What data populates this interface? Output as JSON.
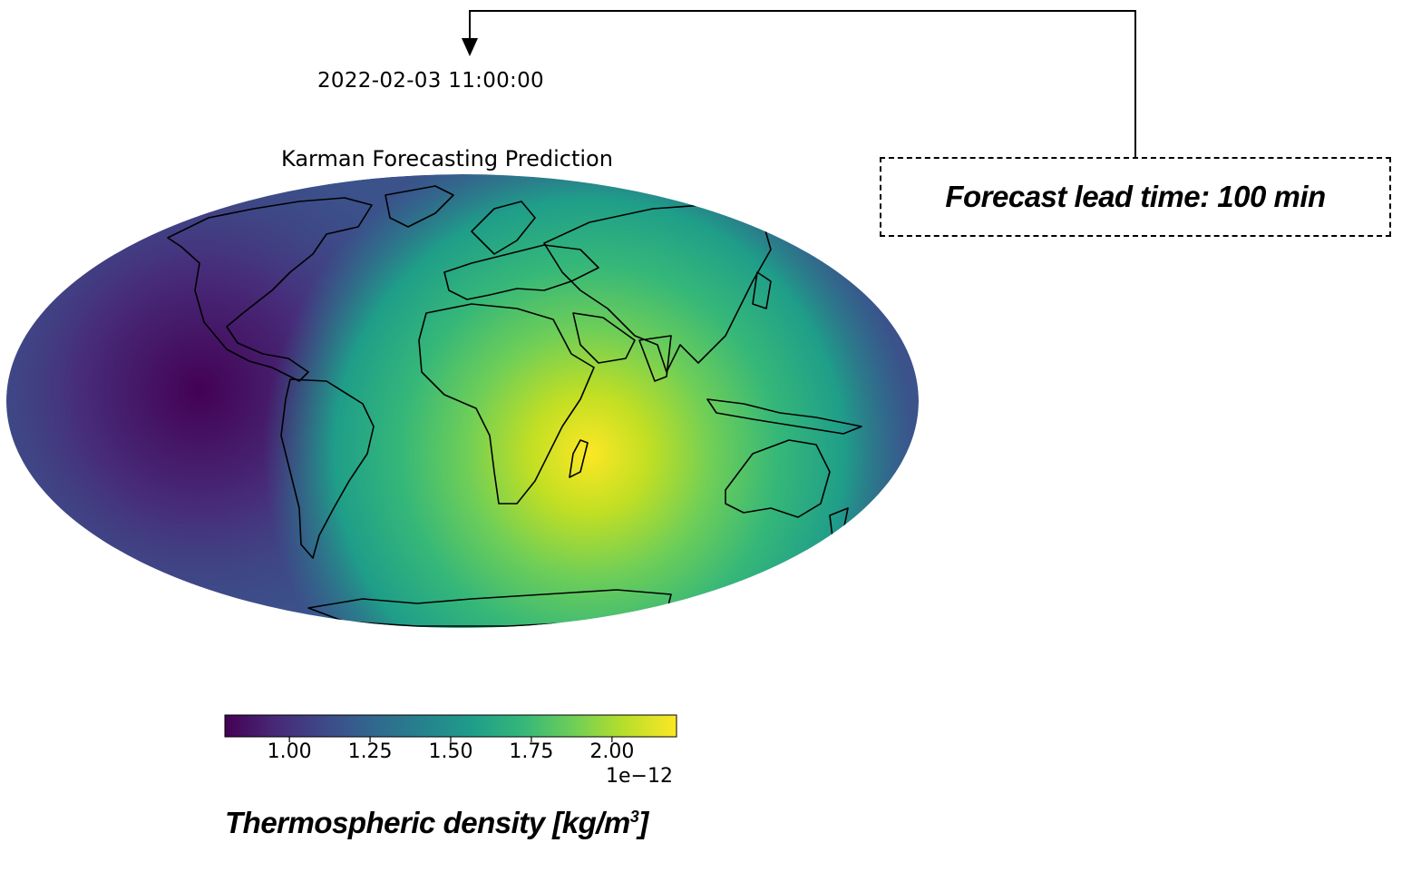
{
  "timestamp": "2022-02-03 11:00:00",
  "map_title": "Karman Forecasting Prediction",
  "lead_time_label": "Forecast lead time: 100 min",
  "colorbar": {
    "colormap": "viridis",
    "ticks": [
      "1.00",
      "1.25",
      "1.50",
      "1.75",
      "2.00"
    ],
    "tick_values": [
      1.0,
      1.25,
      1.5,
      1.75,
      2.0
    ],
    "range": [
      0.8,
      2.2
    ],
    "exponent": "1e−12",
    "label_main": "Thermospheric density [kg/m",
    "label_sup": "3",
    "label_end": "]"
  },
  "map": {
    "projection": "Mollweide",
    "field": "Thermospheric density",
    "max_region": "East Africa / Indian Ocean",
    "min_region": "Central Pacific / Americas"
  },
  "colors": {
    "viridis": [
      "#440154",
      "#482878",
      "#3e4989",
      "#31688e",
      "#26828e",
      "#1f9e89",
      "#35b779",
      "#6ece58",
      "#b5de2b",
      "#fde725"
    ],
    "coastline": "#000000",
    "connector": "#000000"
  }
}
